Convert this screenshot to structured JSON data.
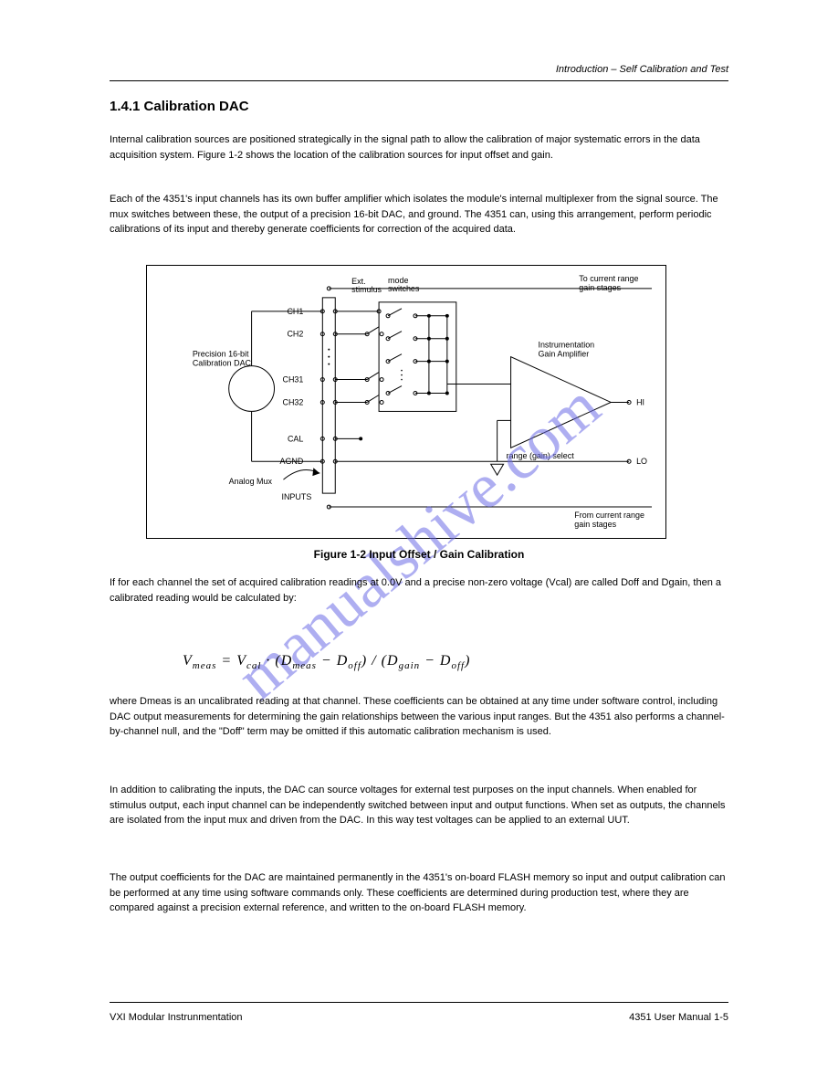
{
  "header": {
    "right": "Introduction – Self Calibration and Test"
  },
  "section": {
    "title": "1.4.1 Calibration DAC"
  },
  "paragraphs": {
    "p1": "Internal calibration sources are positioned strategically in the signal path to allow the calibration of major systematic errors in the data acquisition system. Figure 1-2 shows the location of the calibration sources for input offset and gain.",
    "p2": "Each of the 4351's input channels has its own buffer amplifier which isolates the module's internal multiplexer from the signal source. The mux switches between these, the output of a precision 16-bit DAC, and ground. The 4351 can, using this arrangement, perform periodic calibrations of its input and thereby generate coefficients for correction of the acquired data.",
    "p3": "If for each channel the set of acquired calibration readings at 0.0V and a precise non-zero voltage (Vcal) are called Doff and Dgain, then a calibrated reading would be calculated by:",
    "p4": "where Dmeas is an uncalibrated reading at that channel. These coefficients can be obtained at any time under software control, including DAC output measurements for determining the gain relationships between the various input ranges. But the 4351 also performs a channel-by-channel null, and the \"Doff\" term may be omitted if this automatic calibration mechanism is used.",
    "p5": "In addition to calibrating the inputs, the DAC can source voltages for external test purposes on the input channels. When enabled for stimulus output, each input channel can be independently switched between input and output functions. When set as outputs, the channels are isolated from the input mux and driven from the DAC. In this way test voltages can be applied to an external UUT.",
    "p6": "The output coefficients for the DAC are maintained permanently in the 4351's on-board FLASH memory so input and output calibration can be performed at any time using software commands only. These coefficients are determined during production test, where they are compared against a precision external reference, and written to the on-board FLASH memory."
  },
  "equation": "V<sub>meas</sub> = V<sub>cal</sub> · (D<sub>meas</sub> − D<sub>off</sub>) / (D<sub>gain</sub> − D<sub>off</sub>)",
  "figure": {
    "caption": "Figure 1-2 Input Offset / Gain Calibration",
    "type": "schematic",
    "colors": {
      "stroke": "#000000",
      "fill": "#ffffff",
      "watermark": "rgba(108,108,230,0.55)"
    },
    "labels": {
      "top_out": "To current range\ngain stages",
      "ch1": "CH1",
      "ch2": "CH2",
      "ch31": "CH31",
      "ch32": "CH32",
      "cal": "CAL",
      "agnd": "AGND",
      "dac": "Precision 16-bit\nCalibration DAC",
      "inputs": "INPUTS",
      "ext_stim": "Ext.\nstimulus\nmode\nswitches",
      "mux": "Analog Mux",
      "gain": "Instrumentation\nGain Amplifier",
      "range": "range (gain) select",
      "hi": "HI",
      "lo": "LO",
      "bottom_in": "From current range\ngain stages"
    },
    "watermark": "manualshive.com"
  },
  "footer": {
    "left": "VXI Modular Instrunmentation",
    "right": "4351 User Manual 1-5"
  }
}
